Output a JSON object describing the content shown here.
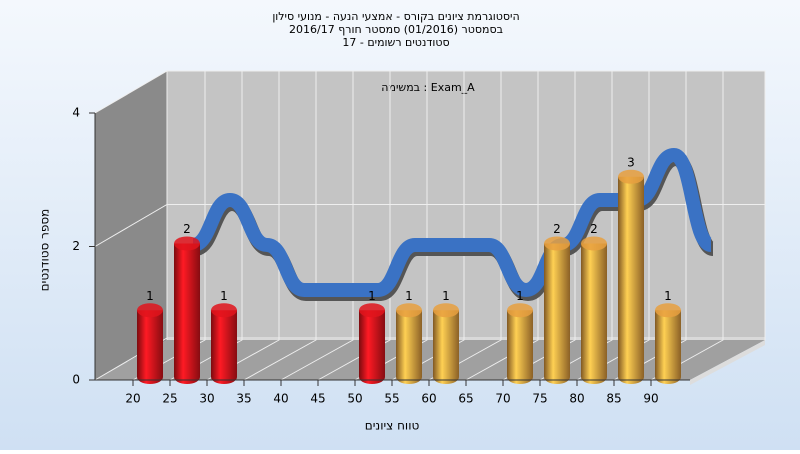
{
  "chart_data": {
    "type": "bar",
    "title": [
      "היסטוגרמת ציונים בקורס - אמצעי הנעה - מנועי סילון",
      "בסמסטר  (01/2016)  סמסטר חורף 2016/17",
      "סטודנטים רשומים - 17"
    ],
    "annotation": "במשימה : Exam_A",
    "x_label": "טווח ציונים",
    "y_label": "מספר סטודנטים",
    "categories": [
      "20",
      "25",
      "30",
      "35",
      "40",
      "45",
      "50",
      "55",
      "60",
      "65",
      "70",
      "75",
      "80",
      "85",
      "90"
    ],
    "values": [
      1,
      2,
      1,
      0,
      0,
      0,
      1,
      1,
      1,
      0,
      1,
      2,
      2,
      3,
      1
    ],
    "colors": [
      "#e0141c",
      "#e0141c",
      "#e0141c",
      "#e0141c",
      "#e0141c",
      "#e0141c",
      "#e0141c",
      "#e8a040",
      "#e8a040",
      "#e8a040",
      "#e8a040",
      "#e8a040",
      "#e8a040",
      "#e8a040",
      "#e8a040"
    ],
    "trend_color": "#3a72c4",
    "ylim": [
      0,
      4
    ],
    "yticks": [
      0,
      2,
      4
    ],
    "grid": true
  }
}
